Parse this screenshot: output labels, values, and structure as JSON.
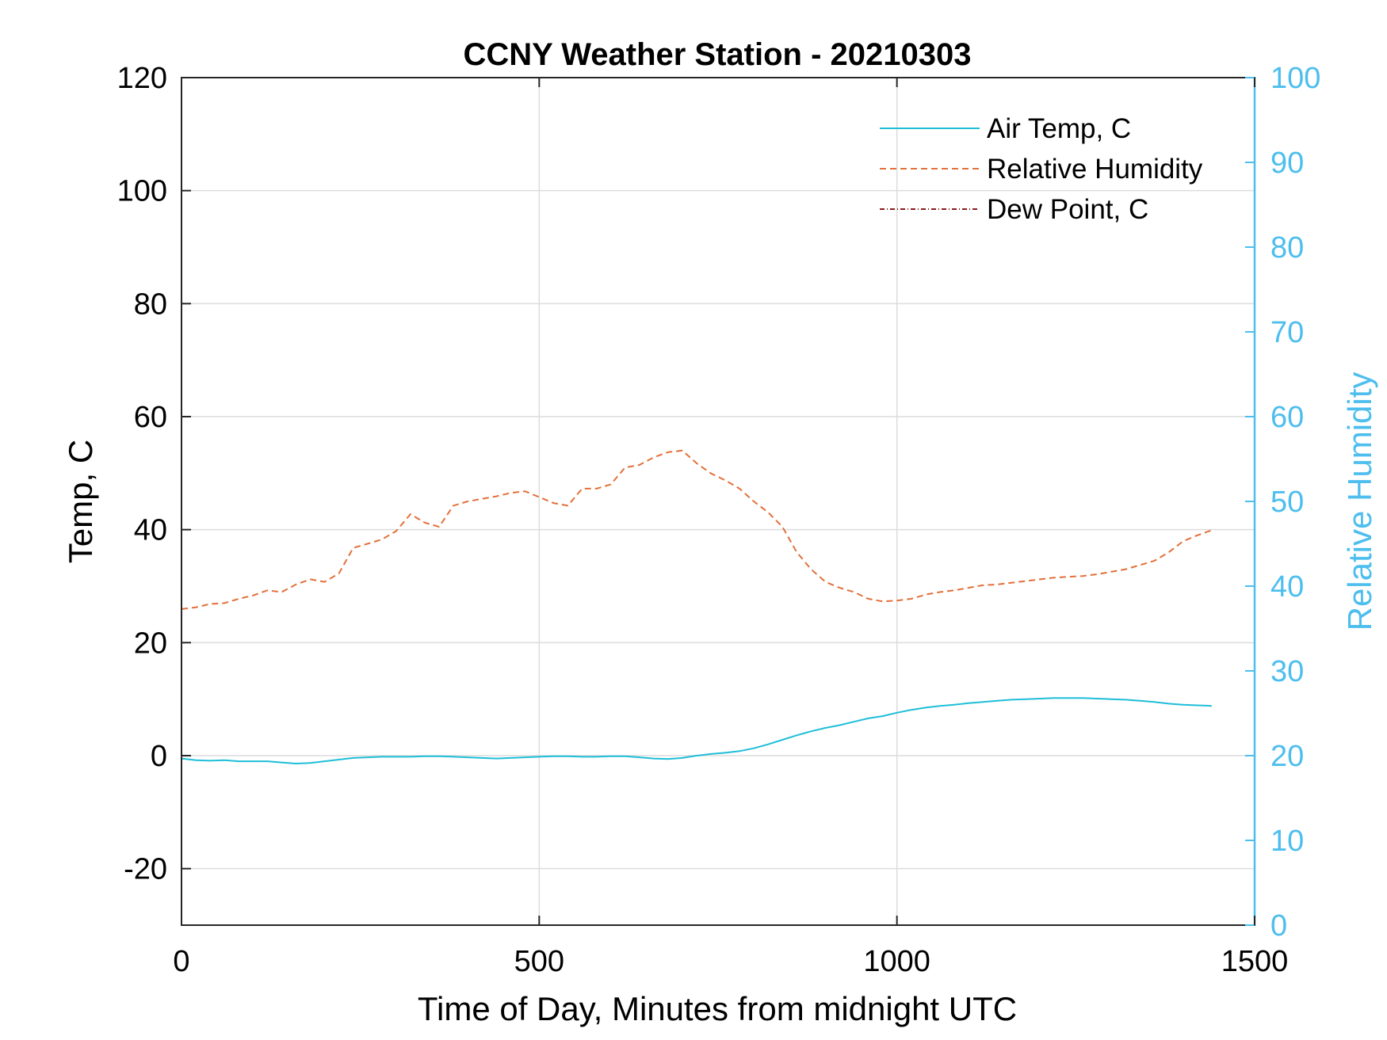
{
  "chart_data": {
    "type": "line",
    "title": "CCNY Weather Station - 20210303",
    "xlabel": "Time of Day, Minutes from midnight UTC",
    "ylabel": "Temp, C",
    "ylabel_right": "Relative Humidity",
    "xlim": [
      0,
      1500
    ],
    "ylim": [
      -30,
      120
    ],
    "ylim_right": [
      0,
      100
    ],
    "xticks": [
      "0",
      "500",
      "1000",
      "1500"
    ],
    "yticks": [
      "-20",
      "0",
      "20",
      "40",
      "60",
      "80",
      "100",
      "120"
    ],
    "yticks_right": [
      "0",
      "10",
      "20",
      "30",
      "40",
      "50",
      "60",
      "70",
      "80",
      "90",
      "100"
    ],
    "grid": true,
    "legend_position": "top-right",
    "colors": {
      "air_temp": "#1EBED8",
      "humidity": "#E2703A",
      "dew_point": "#8B1A1A",
      "right_axis": "#4DBEEE"
    },
    "series": [
      {
        "name": "Air Temp, C",
        "axis": "left",
        "style": "solid",
        "x": [
          0,
          20,
          40,
          60,
          80,
          100,
          120,
          140,
          160,
          180,
          200,
          220,
          240,
          260,
          280,
          300,
          320,
          340,
          360,
          380,
          400,
          420,
          440,
          460,
          480,
          500,
          520,
          540,
          560,
          580,
          600,
          620,
          640,
          660,
          680,
          700,
          720,
          740,
          760,
          780,
          800,
          820,
          840,
          860,
          880,
          900,
          920,
          940,
          960,
          980,
          1000,
          1020,
          1040,
          1060,
          1080,
          1100,
          1120,
          1140,
          1160,
          1180,
          1200,
          1220,
          1240,
          1260,
          1280,
          1300,
          1320,
          1340,
          1360,
          1380,
          1400,
          1420,
          1440
        ],
        "y": [
          -0.5,
          -0.8,
          -0.9,
          -0.8,
          -1.0,
          -1.0,
          -1.0,
          -1.2,
          -1.4,
          -1.3,
          -1.0,
          -0.7,
          -0.4,
          -0.3,
          -0.2,
          -0.2,
          -0.2,
          -0.1,
          -0.1,
          -0.2,
          -0.3,
          -0.4,
          -0.5,
          -0.4,
          -0.3,
          -0.2,
          -0.1,
          -0.1,
          -0.2,
          -0.2,
          -0.1,
          -0.1,
          -0.3,
          -0.5,
          -0.6,
          -0.4,
          0.0,
          0.3,
          0.5,
          0.8,
          1.3,
          2.0,
          2.8,
          3.6,
          4.3,
          4.9,
          5.4,
          6.0,
          6.6,
          7.0,
          7.6,
          8.1,
          8.5,
          8.8,
          9.0,
          9.3,
          9.5,
          9.7,
          9.9,
          10.0,
          10.1,
          10.2,
          10.2,
          10.2,
          10.1,
          10.0,
          9.9,
          9.7,
          9.5,
          9.2,
          9.0,
          8.9,
          8.8
        ]
      },
      {
        "name": "Relative Humidity",
        "axis": "right",
        "style": "dashed",
        "x": [
          0,
          20,
          40,
          60,
          80,
          100,
          120,
          140,
          160,
          180,
          200,
          220,
          240,
          260,
          280,
          300,
          320,
          340,
          360,
          380,
          400,
          420,
          440,
          460,
          480,
          500,
          520,
          540,
          560,
          580,
          600,
          620,
          640,
          660,
          680,
          700,
          720,
          740,
          760,
          780,
          800,
          820,
          840,
          860,
          880,
          900,
          920,
          940,
          960,
          980,
          1000,
          1020,
          1040,
          1060,
          1080,
          1100,
          1120,
          1140,
          1160,
          1180,
          1200,
          1220,
          1240,
          1260,
          1280,
          1300,
          1320,
          1340,
          1360,
          1380,
          1400,
          1420,
          1440
        ],
        "y": [
          37.3,
          37.5,
          37.9,
          38.0,
          38.5,
          38.9,
          39.5,
          39.3,
          40.2,
          40.8,
          40.5,
          41.5,
          44.5,
          45.0,
          45.5,
          46.5,
          48.5,
          47.5,
          47.0,
          49.5,
          50.0,
          50.3,
          50.6,
          51.0,
          51.2,
          50.5,
          49.8,
          49.5,
          51.5,
          51.5,
          52.0,
          54.0,
          54.3,
          55.2,
          55.8,
          56.0,
          54.5,
          53.3,
          52.5,
          51.5,
          50.0,
          48.7,
          47.0,
          44.0,
          42.0,
          40.5,
          39.8,
          39.3,
          38.5,
          38.2,
          38.3,
          38.5,
          39.0,
          39.3,
          39.5,
          39.8,
          40.1,
          40.2,
          40.4,
          40.6,
          40.8,
          41.0,
          41.1,
          41.2,
          41.4,
          41.7,
          42.0,
          42.5,
          43.0,
          44.0,
          45.3,
          46.0,
          46.6
        ]
      },
      {
        "name": "Dew Point, C",
        "axis": "left",
        "style": "dash-dot",
        "x": [],
        "y": []
      }
    ]
  }
}
